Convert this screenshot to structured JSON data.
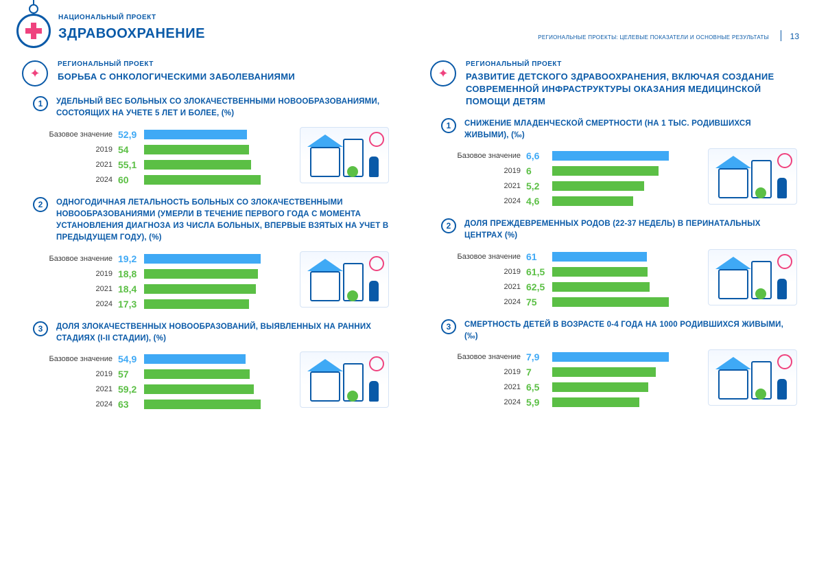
{
  "colors": {
    "primary": "#0a5aa8",
    "accent": "#ef427e",
    "bar_base": "#3fa9f5",
    "bar_year": "#5bbf45",
    "val_base": "#3fa9f5",
    "val_year": "#5bbf45"
  },
  "header": {
    "kicker": "НАЦИОНАЛЬНЫЙ ПРОЕКТ",
    "title": "ЗДРАВООХРАНЕНИЕ",
    "subtitle": "РЕГИОНАЛЬНЫЕ ПРОЕКТЫ: ЦЕЛЕВЫЕ ПОКАЗАТЕЛИ И ОСНОВНЫЕ РЕЗУЛЬТАТЫ",
    "page": "13"
  },
  "left": {
    "kicker": "РЕГИОНАЛЬНЫЙ ПРОЕКТ",
    "title": "БОРЬБА С ОНКОЛОГИЧЕСКИМИ ЗАБОЛЕВАНИЯМИ",
    "indicators": [
      {
        "num": "1",
        "title": "УДЕЛЬНЫЙ ВЕС БОЛЬНЫХ СО ЗЛОКАЧЕСТВЕННЫМИ НОВООБРАЗОВАНИЯМИ, СОСТОЯЩИХ НА УЧЕТЕ 5 ЛЕТ И БОЛЕЕ, (%)",
        "max": 60,
        "rows": [
          {
            "label": "Базовое значение",
            "val": "52,9",
            "num": 52.9,
            "base": true
          },
          {
            "label": "2019",
            "val": "54",
            "num": 54,
            "base": false
          },
          {
            "label": "2021",
            "val": "55,1",
            "num": 55.1,
            "base": false
          },
          {
            "label": "2024",
            "val": "60",
            "num": 60,
            "base": false
          }
        ]
      },
      {
        "num": "2",
        "title": "ОДНОГОДИЧНАЯ ЛЕТАЛЬНОСТЬ БОЛЬНЫХ СО ЗЛОКАЧЕСТВЕННЫМИ НОВООБРАЗОВАНИЯМИ (УМЕРЛИ В ТЕЧЕНИЕ ПЕРВОГО ГОДА С МОМЕНТА УСТАНОВЛЕНИЯ ДИАГНОЗА ИЗ ЧИСЛА БОЛЬНЫХ, ВПЕРВЫЕ ВЗЯТЫХ НА УЧЕТ В ПРЕДЫДУЩЕМ ГОДУ), (%)",
        "max": 19.2,
        "rows": [
          {
            "label": "Базовое значение",
            "val": "19,2",
            "num": 19.2,
            "base": true
          },
          {
            "label": "2019",
            "val": "18,8",
            "num": 18.8,
            "base": false
          },
          {
            "label": "2021",
            "val": "18,4",
            "num": 18.4,
            "base": false
          },
          {
            "label": "2024",
            "val": "17,3",
            "num": 17.3,
            "base": false
          }
        ]
      },
      {
        "num": "3",
        "title": "ДОЛЯ ЗЛОКАЧЕСТВЕННЫХ НОВООБРАЗОВАНИЙ, ВЫЯВЛЕННЫХ НА РАННИХ СТАДИЯХ (I-II СТАДИИ), (%)",
        "max": 63,
        "rows": [
          {
            "label": "Базовое значение",
            "val": "54,9",
            "num": 54.9,
            "base": true
          },
          {
            "label": "2019",
            "val": "57",
            "num": 57,
            "base": false
          },
          {
            "label": "2021",
            "val": "59,2",
            "num": 59.2,
            "base": false
          },
          {
            "label": "2024",
            "val": "63",
            "num": 63,
            "base": false
          }
        ]
      }
    ]
  },
  "right": {
    "kicker": "РЕГИОНАЛЬНЫЙ ПРОЕКТ",
    "title": "РАЗВИТИЕ ДЕТСКОГО ЗДРАВООХРАНЕНИЯ, ВКЛЮЧАЯ СОЗДАНИЕ СОВРЕМЕННОЙ ИНФРАСТРУКТУРЫ ОКАЗАНИЯ МЕДИЦИНСКОЙ ПОМОЩИ ДЕТЯМ",
    "indicators": [
      {
        "num": "1",
        "title": "СНИЖЕНИЕ МЛАДЕНЧЕСКОЙ СМЕРТНОСТИ (НА 1 ТЫС. РОДИВШИХСЯ ЖИВЫМИ), (‰)",
        "max": 6.6,
        "rows": [
          {
            "label": "Базовое значение",
            "val": "6,6",
            "num": 6.6,
            "base": true
          },
          {
            "label": "2019",
            "val": "6",
            "num": 6,
            "base": false
          },
          {
            "label": "2021",
            "val": "5,2",
            "num": 5.2,
            "base": false
          },
          {
            "label": "2024",
            "val": "4,6",
            "num": 4.6,
            "base": false
          }
        ]
      },
      {
        "num": "2",
        "title": "ДОЛЯ ПРЕЖДЕВРЕМЕННЫХ РОДОВ (22-37 НЕДЕЛЬ) В ПЕРИНАТАЛЬНЫХ ЦЕНТРАХ (%)",
        "max": 75,
        "rows": [
          {
            "label": "Базовое значение",
            "val": "61",
            "num": 61,
            "base": true
          },
          {
            "label": "2019",
            "val": "61,5",
            "num": 61.5,
            "base": false
          },
          {
            "label": "2021",
            "val": "62,5",
            "num": 62.5,
            "base": false
          },
          {
            "label": "2024",
            "val": "75",
            "num": 75,
            "base": false
          }
        ]
      },
      {
        "num": "3",
        "title": "СМЕРТНОСТЬ ДЕТЕЙ В ВОЗРАСТЕ 0-4 ГОДА НА 1000 РОДИВШИХСЯ ЖИВЫМИ, (‰)",
        "max": 7.9,
        "rows": [
          {
            "label": "Базовое значение",
            "val": "7,9",
            "num": 7.9,
            "base": true
          },
          {
            "label": "2019",
            "val": "7",
            "num": 7,
            "base": false
          },
          {
            "label": "2021",
            "val": "6,5",
            "num": 6.5,
            "base": false
          },
          {
            "label": "2024",
            "val": "5,9",
            "num": 5.9,
            "base": false
          }
        ]
      }
    ]
  }
}
